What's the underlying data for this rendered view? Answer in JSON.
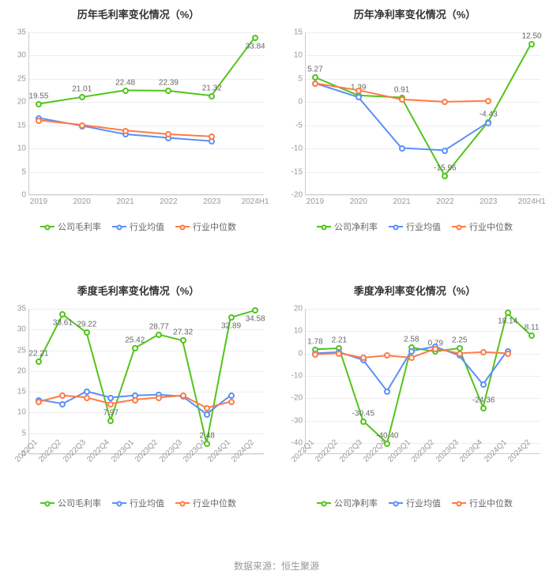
{
  "colors": {
    "company": "#52c41a",
    "avg": "#5b8ff9",
    "median": "#ff7a45",
    "grid": "#eeeeee",
    "axis": "#cccccc",
    "text": "#666666",
    "title": "#333333",
    "bg": "#ffffff"
  },
  "line_width": 2,
  "marker_size": 8,
  "title_fontsize": 13,
  "tick_fontsize": 10,
  "legend_fontsize": 11,
  "source_text": "数据来源：恒生聚源",
  "charts": [
    {
      "id": "annual_gross",
      "title": "历年毛利率变化情况（%）",
      "x_labels": [
        "2019",
        "2020",
        "2021",
        "2022",
        "2023",
        "2024H1"
      ],
      "x_rotate": false,
      "ylim": [
        0,
        35
      ],
      "ytick_step": 5,
      "series": [
        {
          "key": "company",
          "name": "公司毛利率",
          "values": [
            19.55,
            21.01,
            22.48,
            22.39,
            21.32,
            33.84
          ],
          "show_labels": [
            19.55,
            21.01,
            22.48,
            22.39,
            21.32,
            33.84
          ]
        },
        {
          "key": "avg",
          "name": "行业均值",
          "values": [
            16.5,
            14.8,
            13.0,
            12.2,
            11.5,
            null
          ],
          "show_labels": []
        },
        {
          "key": "median",
          "name": "行业中位数",
          "values": [
            16.0,
            15.0,
            13.8,
            13.0,
            12.5,
            null
          ],
          "show_labels": []
        }
      ],
      "legend": [
        "公司毛利率",
        "行业均值",
        "行业中位数"
      ]
    },
    {
      "id": "annual_net",
      "title": "历年净利率变化情况（%）",
      "x_labels": [
        "2019",
        "2020",
        "2021",
        "2022",
        "2023",
        "2024H1"
      ],
      "x_rotate": false,
      "ylim": [
        -20,
        15
      ],
      "ytick_step": 5,
      "series": [
        {
          "key": "company",
          "name": "公司净利率",
          "values": [
            5.27,
            1.39,
            0.91,
            -15.96,
            -4.43,
            12.5
          ],
          "show_labels": [
            5.27,
            1.39,
            0.91,
            -15.96,
            -4.43,
            12.5
          ]
        },
        {
          "key": "avg",
          "name": "行业均值",
          "values": [
            4.0,
            1.0,
            -10.0,
            -10.5,
            -4.5,
            null
          ],
          "show_labels": []
        },
        {
          "key": "median",
          "name": "行业中位数",
          "values": [
            4.0,
            2.5,
            0.5,
            0.0,
            0.2,
            null
          ],
          "show_labels": []
        }
      ],
      "legend": [
        "公司净利率",
        "行业均值",
        "行业中位数"
      ]
    },
    {
      "id": "quarter_gross",
      "title": "季度毛利率变化情况（%）",
      "x_labels": [
        "2022Q1",
        "2022Q2",
        "2022Q3",
        "2022Q4",
        "2023Q1",
        "2023Q2",
        "2023Q3",
        "2023Q4",
        "2024Q1",
        "2024Q2"
      ],
      "x_rotate": true,
      "ylim": [
        0,
        35
      ],
      "ytick_step": 5,
      "series": [
        {
          "key": "company",
          "name": "公司毛利率",
          "values": [
            22.21,
            33.61,
            29.22,
            7.97,
            25.42,
            28.77,
            27.32,
            2.48,
            32.89,
            34.58
          ],
          "show_labels": [
            22.21,
            33.61,
            29.22,
            7.97,
            25.42,
            28.77,
            27.32,
            2.48,
            32.89,
            34.58
          ]
        },
        {
          "key": "avg",
          "name": "行业均值",
          "values": [
            13.0,
            12.0,
            15.0,
            13.5,
            14.0,
            14.2,
            13.8,
            9.5,
            14.0,
            null
          ],
          "show_labels": []
        },
        {
          "key": "median",
          "name": "行业中位数",
          "values": [
            12.5,
            14.0,
            13.5,
            12.0,
            13.0,
            13.5,
            14.0,
            11.0,
            12.5,
            null
          ],
          "show_labels": []
        }
      ],
      "legend": [
        "公司毛利率",
        "行业均值",
        "行业中位数"
      ]
    },
    {
      "id": "quarter_net",
      "title": "季度净利率变化情况（%）",
      "x_labels": [
        "2022Q1",
        "2022Q2",
        "2022Q3",
        "2022Q4",
        "2023Q1",
        "2023Q2",
        "2023Q3",
        "2023Q4",
        "2024Q1",
        "2024Q2"
      ],
      "x_rotate": true,
      "ylim": [
        -45,
        20
      ],
      "ytick_step": 10,
      "surplus_top_tick": 20,
      "series": [
        {
          "key": "company",
          "name": "公司净利率",
          "values": [
            1.78,
            2.21,
            -30.45,
            -40.4,
            2.58,
            0.79,
            2.25,
            -24.36,
            18.14,
            8.11
          ],
          "show_labels": [
            1.78,
            2.21,
            -30.45,
            -40.4,
            2.58,
            0.79,
            2.25,
            -24.36,
            18.14,
            8.11
          ]
        },
        {
          "key": "avg",
          "name": "行业均值",
          "values": [
            0.0,
            0.5,
            -3.0,
            -17.0,
            1.0,
            3.0,
            -1.0,
            -14.0,
            1.0,
            null
          ],
          "show_labels": []
        },
        {
          "key": "median",
          "name": "行业中位数",
          "values": [
            -0.5,
            0.0,
            -2.0,
            -1.0,
            -2.0,
            2.0,
            0.0,
            0.5,
            0.0,
            null
          ],
          "show_labels": []
        }
      ],
      "legend": [
        "公司净利率",
        "行业均值",
        "行业中位数"
      ]
    }
  ]
}
